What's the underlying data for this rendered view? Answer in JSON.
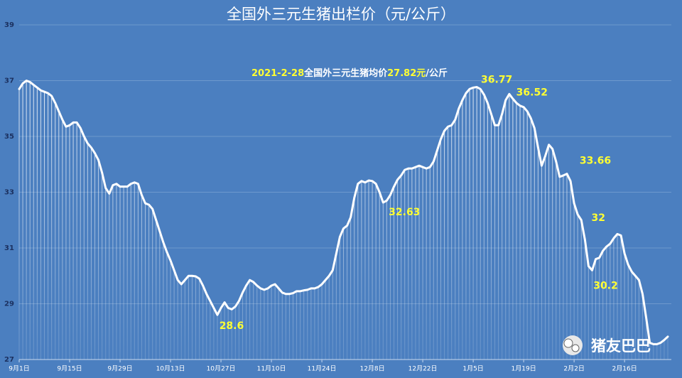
{
  "chart_data": {
    "type": "line",
    "title": "全国外三元生猪出栏价（元/公斤）",
    "subtitle": [
      "2021-2-28",
      "全国外三元生猪均价",
      "27.82元",
      "/公斤"
    ],
    "watermark": "猪友巴巴",
    "color": "#ffffff",
    "grid": true,
    "ylim": [
      27,
      39
    ],
    "yticks": [
      27,
      29,
      31,
      33,
      35,
      37,
      39
    ],
    "categories": [
      "9月1日",
      null,
      null,
      null,
      null,
      null,
      null,
      null,
      null,
      null,
      null,
      null,
      null,
      null,
      "9月15日",
      null,
      null,
      null,
      null,
      null,
      null,
      null,
      null,
      null,
      null,
      null,
      null,
      null,
      "9月29日",
      null,
      null,
      null,
      null,
      null,
      null,
      null,
      null,
      null,
      null,
      null,
      null,
      null,
      "10月13日",
      null,
      null,
      null,
      null,
      null,
      null,
      null,
      null,
      null,
      null,
      null,
      null,
      null,
      "10月27日",
      null,
      null,
      null,
      null,
      null,
      null,
      null,
      null,
      null,
      null,
      null,
      null,
      null,
      "11月10日",
      null,
      null,
      null,
      null,
      null,
      null,
      null,
      null,
      null,
      null,
      null,
      null,
      null,
      "11月24日",
      null,
      null,
      null,
      null,
      null,
      null,
      null,
      null,
      null,
      null,
      null,
      null,
      null,
      "12月8日",
      null,
      null,
      null,
      null,
      null,
      null,
      null,
      null,
      null,
      null,
      null,
      null,
      null,
      "12月22日",
      null,
      null,
      null,
      null,
      null,
      null,
      null,
      null,
      null,
      null,
      null,
      null,
      null,
      "1月5日",
      null,
      null,
      null,
      null,
      null,
      null,
      null,
      null,
      null,
      null,
      null,
      null,
      null,
      "1月19日",
      null,
      null,
      null,
      null,
      null,
      null,
      null,
      null,
      null,
      null,
      null,
      null,
      null,
      "2月2日",
      null,
      null,
      null,
      null,
      null,
      null,
      null,
      null,
      null,
      null,
      null,
      null,
      null,
      "2月16日",
      null,
      null,
      null,
      null,
      null,
      null,
      null,
      null,
      null,
      null,
      null,
      null
    ],
    "values": [
      36.7,
      36.9,
      37.0,
      36.95,
      36.85,
      36.75,
      36.65,
      36.6,
      36.55,
      36.45,
      36.2,
      35.9,
      35.6,
      35.35,
      35.4,
      35.5,
      35.5,
      35.3,
      35.0,
      34.75,
      34.6,
      34.4,
      34.15,
      33.7,
      33.15,
      32.95,
      33.25,
      33.3,
      33.2,
      33.2,
      33.2,
      33.3,
      33.35,
      33.3,
      32.9,
      32.6,
      32.55,
      32.4,
      32.0,
      31.6,
      31.2,
      30.85,
      30.55,
      30.2,
      29.85,
      29.7,
      29.85,
      30.0,
      30.0,
      29.98,
      29.9,
      29.65,
      29.35,
      29.1,
      28.85,
      28.6,
      28.85,
      29.05,
      28.85,
      28.8,
      28.9,
      29.1,
      29.4,
      29.65,
      29.85,
      29.78,
      29.65,
      29.55,
      29.5,
      29.55,
      29.65,
      29.7,
      29.55,
      29.4,
      29.35,
      29.35,
      29.38,
      29.45,
      29.45,
      29.48,
      29.5,
      29.55,
      29.55,
      29.6,
      29.7,
      29.85,
      30.0,
      30.2,
      30.8,
      31.4,
      31.7,
      31.8,
      32.1,
      32.8,
      33.3,
      33.4,
      33.35,
      33.42,
      33.4,
      33.3,
      33.0,
      32.63,
      32.7,
      32.9,
      33.2,
      33.45,
      33.6,
      33.8,
      33.85,
      33.85,
      33.9,
      33.95,
      33.9,
      33.85,
      33.9,
      34.1,
      34.5,
      34.9,
      35.2,
      35.35,
      35.4,
      35.6,
      36.0,
      36.3,
      36.55,
      36.7,
      36.75,
      36.77,
      36.7,
      36.5,
      36.2,
      35.8,
      35.4,
      35.4,
      35.8,
      36.3,
      36.52,
      36.35,
      36.2,
      36.1,
      36.05,
      35.9,
      35.65,
      35.3,
      34.6,
      33.95,
      34.3,
      34.7,
      34.55,
      34.1,
      33.55,
      33.6,
      33.66,
      33.4,
      32.6,
      32.2,
      32,
      31.3,
      30.35,
      30.2,
      30.6,
      30.65,
      30.9,
      31.05,
      31.15,
      31.35,
      31.5,
      31.45,
      30.8,
      30.4,
      30.15,
      30.0,
      29.85,
      29.35,
      28.5,
      27.6,
      27.55,
      27.55,
      27.6,
      27.7,
      27.82
    ],
    "value_labels": [
      null,
      null,
      null,
      null,
      null,
      null,
      null,
      null,
      null,
      null,
      null,
      null,
      null,
      null,
      null,
      null,
      null,
      null,
      null,
      null,
      null,
      null,
      null,
      null,
      null,
      null,
      null,
      null,
      null,
      null,
      null,
      null,
      null,
      null,
      null,
      null,
      null,
      null,
      null,
      null,
      null,
      null,
      null,
      null,
      null,
      null,
      null,
      null,
      null,
      null,
      null,
      null,
      null,
      null,
      null,
      "28.6",
      null,
      null,
      null,
      null,
      null,
      null,
      null,
      null,
      null,
      null,
      null,
      null,
      null,
      null,
      null,
      null,
      null,
      null,
      null,
      null,
      null,
      null,
      null,
      null,
      null,
      null,
      null,
      null,
      null,
      null,
      null,
      null,
      null,
      null,
      null,
      null,
      null,
      null,
      null,
      null,
      null,
      null,
      null,
      null,
      null,
      "32.63",
      null,
      null,
      null,
      null,
      null,
      null,
      null,
      null,
      null,
      null,
      null,
      null,
      null,
      null,
      null,
      null,
      null,
      null,
      null,
      null,
      null,
      null,
      null,
      null,
      null,
      "36.77",
      null,
      null,
      null,
      null,
      null,
      null,
      null,
      null,
      "36.52",
      null,
      null,
      null,
      null,
      null,
      null,
      null,
      null,
      null,
      null,
      null,
      null,
      null,
      null,
      null,
      "33.66",
      null,
      null,
      null,
      "32",
      null,
      null,
      "30.2",
      null,
      null,
      null,
      null,
      null,
      null,
      null,
      null,
      null,
      null,
      null,
      null,
      null,
      null,
      null,
      null,
      null,
      null,
      null,
      null,
      null
    ]
  }
}
